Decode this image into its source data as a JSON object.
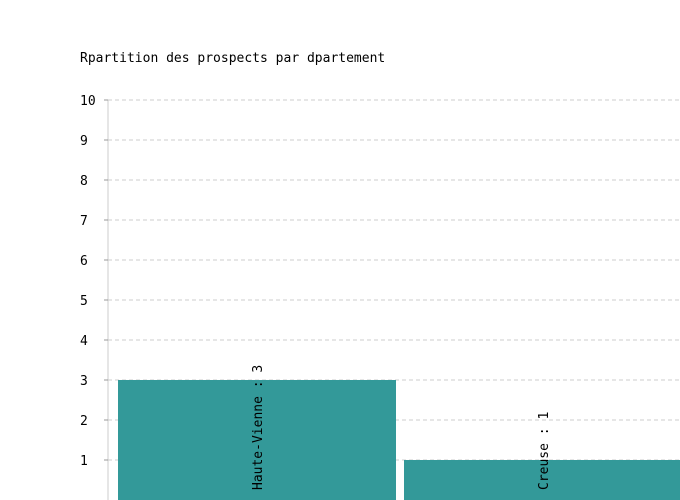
{
  "chart_data": {
    "type": "bar",
    "title": "Rpartition des prospects par dpartement",
    "categories": [
      "Haute-Vienne",
      "Creuse"
    ],
    "values": [
      3,
      1
    ],
    "bar_labels": [
      "Haute-Vienne : 3",
      "Creuse : 1"
    ],
    "ylim": [
      0,
      10
    ],
    "yticks": [
      "1",
      "2",
      "3",
      "4",
      "5",
      "6",
      "7",
      "8",
      "9",
      "10"
    ],
    "xlabel": "",
    "ylabel": "",
    "grid": true,
    "bar_color": "#339999"
  }
}
